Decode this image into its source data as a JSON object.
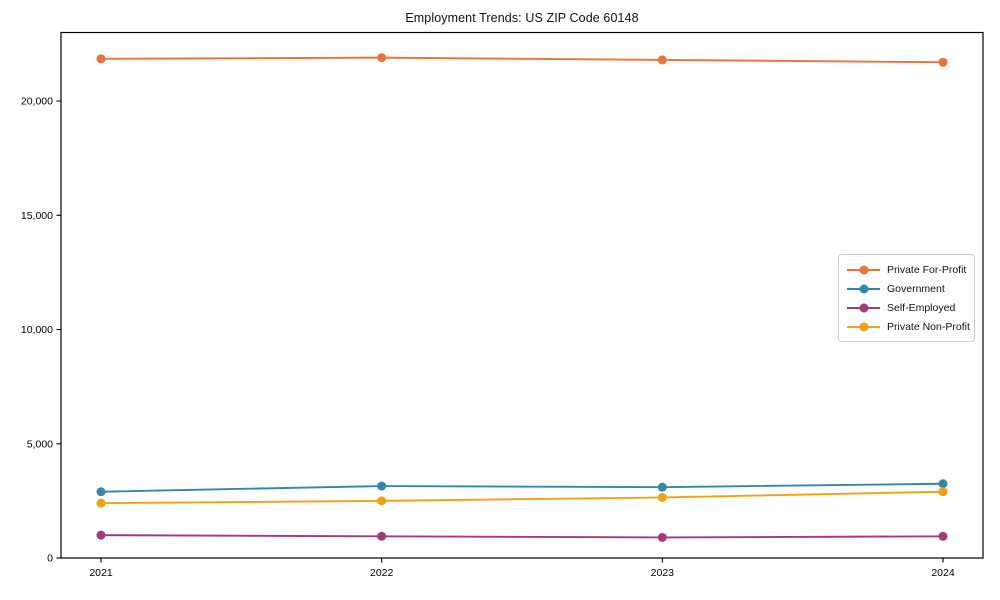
{
  "chart_data": {
    "type": "line",
    "title": "Employment Trends: US ZIP Code 60148",
    "x_labels": [
      "2021",
      "2022",
      "2023",
      "2024"
    ],
    "series": [
      {
        "name": "Private For-Profit",
        "color": "#E8743B",
        "values": [
          21850,
          21900,
          21800,
          21700
        ]
      },
      {
        "name": "Government",
        "color": "#3587A8",
        "values": [
          2900,
          3150,
          3100,
          3250
        ]
      },
      {
        "name": "Self-Employed",
        "color": "#A23B78",
        "values": [
          1000,
          950,
          900,
          950
        ]
      },
      {
        "name": "Private Non-Profit",
        "color": "#F2A113",
        "values": [
          2400,
          2500,
          2650,
          2900
        ]
      }
    ],
    "ylim": [
      0,
      23000
    ],
    "yticks": [
      0,
      5000,
      10000,
      15000,
      20000
    ],
    "ytick_labels": [
      "0",
      "5,000",
      "10,000",
      "15,000",
      "20,000"
    ],
    "legend_position": "center-right",
    "grid": false,
    "marker": "circle"
  }
}
